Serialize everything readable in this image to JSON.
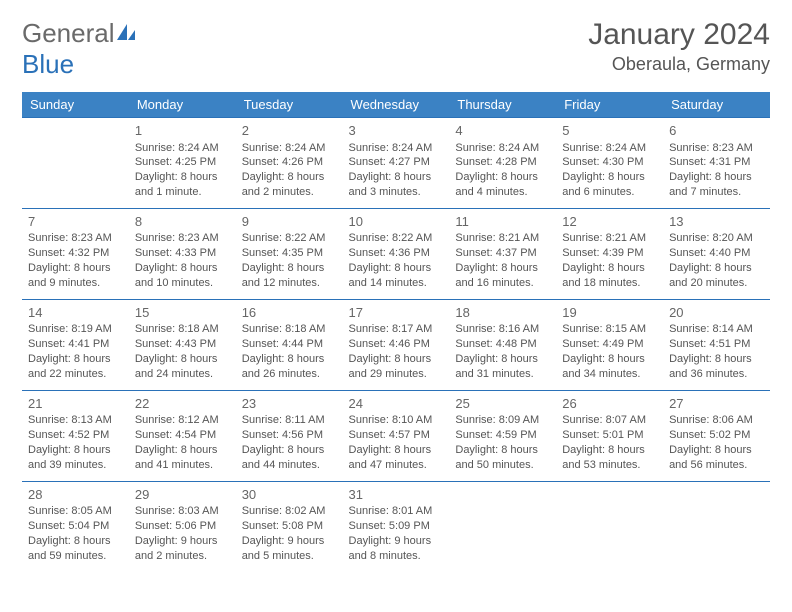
{
  "brand": {
    "general": "General",
    "blue": "Blue"
  },
  "title": "January 2024",
  "location": "Oberaula, Germany",
  "colors": {
    "header_bg": "#3b82c4",
    "header_text": "#ffffff",
    "rule": "#2a71b8",
    "body_text": "#555555",
    "logo_gray": "#6a6a6a",
    "logo_blue": "#2a71b8",
    "page_bg": "#ffffff"
  },
  "typography": {
    "month_title_pt": 30,
    "location_pt": 18,
    "header_cell_pt": 13,
    "daynum_pt": 13,
    "body_pt": 11,
    "font_family": "Arial"
  },
  "daynames": [
    "Sunday",
    "Monday",
    "Tuesday",
    "Wednesday",
    "Thursday",
    "Friday",
    "Saturday"
  ],
  "weeks": [
    [
      null,
      {
        "n": "1",
        "sr": "8:24 AM",
        "ss": "4:25 PM",
        "dl": "8 hours and 1 minute."
      },
      {
        "n": "2",
        "sr": "8:24 AM",
        "ss": "4:26 PM",
        "dl": "8 hours and 2 minutes."
      },
      {
        "n": "3",
        "sr": "8:24 AM",
        "ss": "4:27 PM",
        "dl": "8 hours and 3 minutes."
      },
      {
        "n": "4",
        "sr": "8:24 AM",
        "ss": "4:28 PM",
        "dl": "8 hours and 4 minutes."
      },
      {
        "n": "5",
        "sr": "8:24 AM",
        "ss": "4:30 PM",
        "dl": "8 hours and 6 minutes."
      },
      {
        "n": "6",
        "sr": "8:23 AM",
        "ss": "4:31 PM",
        "dl": "8 hours and 7 minutes."
      }
    ],
    [
      {
        "n": "7",
        "sr": "8:23 AM",
        "ss": "4:32 PM",
        "dl": "8 hours and 9 minutes."
      },
      {
        "n": "8",
        "sr": "8:23 AM",
        "ss": "4:33 PM",
        "dl": "8 hours and 10 minutes."
      },
      {
        "n": "9",
        "sr": "8:22 AM",
        "ss": "4:35 PM",
        "dl": "8 hours and 12 minutes."
      },
      {
        "n": "10",
        "sr": "8:22 AM",
        "ss": "4:36 PM",
        "dl": "8 hours and 14 minutes."
      },
      {
        "n": "11",
        "sr": "8:21 AM",
        "ss": "4:37 PM",
        "dl": "8 hours and 16 minutes."
      },
      {
        "n": "12",
        "sr": "8:21 AM",
        "ss": "4:39 PM",
        "dl": "8 hours and 18 minutes."
      },
      {
        "n": "13",
        "sr": "8:20 AM",
        "ss": "4:40 PM",
        "dl": "8 hours and 20 minutes."
      }
    ],
    [
      {
        "n": "14",
        "sr": "8:19 AM",
        "ss": "4:41 PM",
        "dl": "8 hours and 22 minutes."
      },
      {
        "n": "15",
        "sr": "8:18 AM",
        "ss": "4:43 PM",
        "dl": "8 hours and 24 minutes."
      },
      {
        "n": "16",
        "sr": "8:18 AM",
        "ss": "4:44 PM",
        "dl": "8 hours and 26 minutes."
      },
      {
        "n": "17",
        "sr": "8:17 AM",
        "ss": "4:46 PM",
        "dl": "8 hours and 29 minutes."
      },
      {
        "n": "18",
        "sr": "8:16 AM",
        "ss": "4:48 PM",
        "dl": "8 hours and 31 minutes."
      },
      {
        "n": "19",
        "sr": "8:15 AM",
        "ss": "4:49 PM",
        "dl": "8 hours and 34 minutes."
      },
      {
        "n": "20",
        "sr": "8:14 AM",
        "ss": "4:51 PM",
        "dl": "8 hours and 36 minutes."
      }
    ],
    [
      {
        "n": "21",
        "sr": "8:13 AM",
        "ss": "4:52 PM",
        "dl": "8 hours and 39 minutes."
      },
      {
        "n": "22",
        "sr": "8:12 AM",
        "ss": "4:54 PM",
        "dl": "8 hours and 41 minutes."
      },
      {
        "n": "23",
        "sr": "8:11 AM",
        "ss": "4:56 PM",
        "dl": "8 hours and 44 minutes."
      },
      {
        "n": "24",
        "sr": "8:10 AM",
        "ss": "4:57 PM",
        "dl": "8 hours and 47 minutes."
      },
      {
        "n": "25",
        "sr": "8:09 AM",
        "ss": "4:59 PM",
        "dl": "8 hours and 50 minutes."
      },
      {
        "n": "26",
        "sr": "8:07 AM",
        "ss": "5:01 PM",
        "dl": "8 hours and 53 minutes."
      },
      {
        "n": "27",
        "sr": "8:06 AM",
        "ss": "5:02 PM",
        "dl": "8 hours and 56 minutes."
      }
    ],
    [
      {
        "n": "28",
        "sr": "8:05 AM",
        "ss": "5:04 PM",
        "dl": "8 hours and 59 minutes."
      },
      {
        "n": "29",
        "sr": "8:03 AM",
        "ss": "5:06 PM",
        "dl": "9 hours and 2 minutes."
      },
      {
        "n": "30",
        "sr": "8:02 AM",
        "ss": "5:08 PM",
        "dl": "9 hours and 5 minutes."
      },
      {
        "n": "31",
        "sr": "8:01 AM",
        "ss": "5:09 PM",
        "dl": "9 hours and 8 minutes."
      },
      null,
      null,
      null
    ]
  ],
  "labels": {
    "sunrise": "Sunrise:",
    "sunset": "Sunset:",
    "daylight": "Daylight:"
  }
}
